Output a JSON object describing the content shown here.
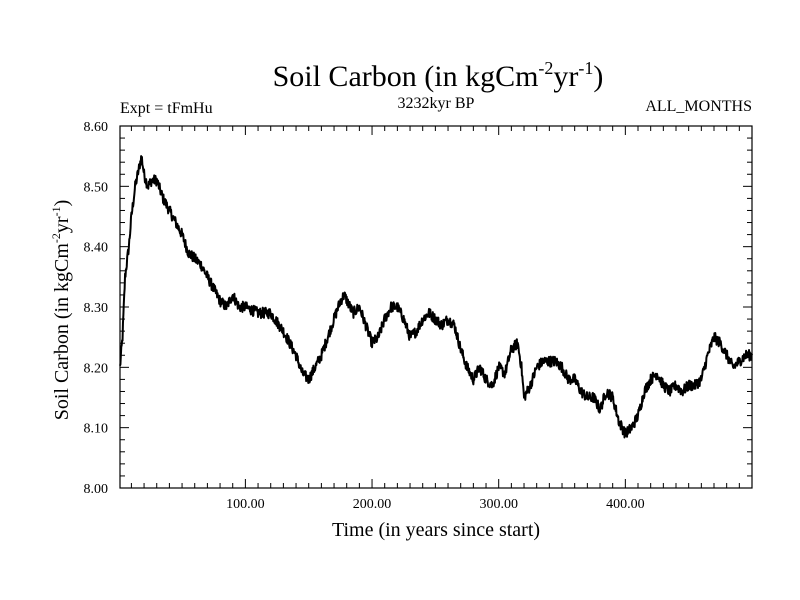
{
  "chart_data": {
    "type": "line",
    "title": {
      "main": "Soil Carbon (in kgCm",
      "sup1": "-2",
      "mid": "yr",
      "sup2": "-1",
      "end": ")"
    },
    "left_annotation": "Expt = tFmHu",
    "center_annotation": "3232kyr BP",
    "right_annotation": "ALL_MONTHS",
    "ylabel": {
      "main": "Soil Carbon (in kgCm",
      "sup1": "-2",
      "mid": "yr",
      "sup2": "-1",
      "end": ")"
    },
    "xlabel": "Time (in years since start)",
    "xlim": [
      1,
      500
    ],
    "ylim": [
      8.0,
      8.6
    ],
    "x_ticks": [
      100,
      200,
      300,
      400
    ],
    "x_tick_labels": [
      "100.00",
      "200.00",
      "300.00",
      "400.00"
    ],
    "y_ticks": [
      8.0,
      8.1,
      8.2,
      8.3,
      8.4,
      8.5,
      8.6
    ],
    "y_tick_labels": [
      "8.00",
      "8.10",
      "8.20",
      "8.30",
      "8.40",
      "8.50",
      "8.60"
    ],
    "grid": false,
    "series": [
      {
        "color": "#000000",
        "x": [
          1,
          3,
          5,
          8,
          10,
          13,
          15,
          18,
          20,
          23,
          26,
          30,
          35,
          40,
          45,
          50,
          55,
          60,
          65,
          70,
          75,
          80,
          85,
          90,
          95,
          100,
          110,
          120,
          130,
          140,
          145,
          150,
          155,
          160,
          165,
          170,
          175,
          178,
          185,
          190,
          195,
          200,
          205,
          210,
          215,
          220,
          225,
          230,
          235,
          240,
          245,
          250,
          255,
          260,
          265,
          270,
          275,
          280,
          285,
          290,
          295,
          300,
          305,
          310,
          315,
          318,
          320,
          325,
          330,
          335,
          340,
          345,
          350,
          355,
          360,
          365,
          370,
          375,
          380,
          385,
          390,
          395,
          400,
          405,
          410,
          415,
          420,
          425,
          430,
          435,
          440,
          445,
          450,
          455,
          460,
          465,
          470,
          475,
          480,
          485,
          490,
          495,
          500
        ],
        "y": [
          8.2,
          8.25,
          8.35,
          8.4,
          8.45,
          8.5,
          8.52,
          8.55,
          8.52,
          8.5,
          8.51,
          8.51,
          8.48,
          8.46,
          8.44,
          8.42,
          8.39,
          8.38,
          8.37,
          8.35,
          8.33,
          8.31,
          8.3,
          8.32,
          8.3,
          8.3,
          8.29,
          8.29,
          8.26,
          8.22,
          8.19,
          8.18,
          8.2,
          8.22,
          8.25,
          8.28,
          8.31,
          8.32,
          8.29,
          8.3,
          8.27,
          8.24,
          8.25,
          8.28,
          8.3,
          8.3,
          8.28,
          8.25,
          8.26,
          8.28,
          8.29,
          8.28,
          8.27,
          8.28,
          8.27,
          8.23,
          8.2,
          8.18,
          8.2,
          8.18,
          8.17,
          8.2,
          8.19,
          8.23,
          8.24,
          8.2,
          8.15,
          8.17,
          8.2,
          8.21,
          8.21,
          8.21,
          8.2,
          8.18,
          8.18,
          8.16,
          8.15,
          8.15,
          8.13,
          8.16,
          8.15,
          8.11,
          8.09,
          8.1,
          8.12,
          8.16,
          8.18,
          8.19,
          8.17,
          8.16,
          8.17,
          8.16,
          8.17,
          8.17,
          8.18,
          8.22,
          8.25,
          8.24,
          8.22,
          8.2,
          8.21,
          8.22,
          8.22
        ]
      }
    ]
  }
}
